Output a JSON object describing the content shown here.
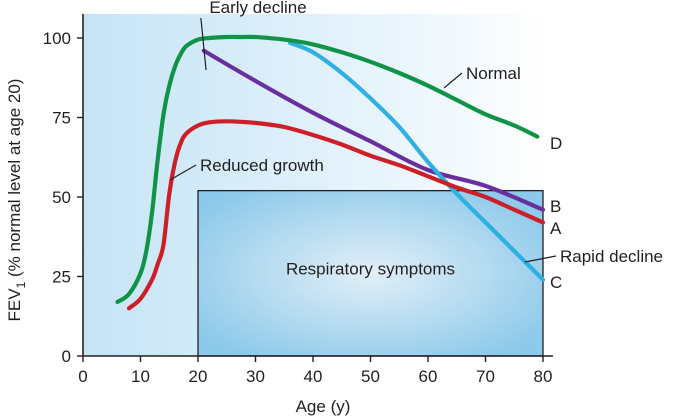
{
  "chart_data": {
    "type": "line",
    "title": "",
    "xlabel": "Age (y)",
    "ylabel_prefix": "FEV",
    "ylabel_sub": "1",
    "ylabel_suffix": " (% normal level at age 20)",
    "xlim": [
      0,
      80
    ],
    "ylim": [
      0,
      105
    ],
    "xticks": [
      0,
      10,
      20,
      30,
      40,
      50,
      60,
      70,
      80
    ],
    "yticks": [
      0,
      25,
      50,
      75,
      100
    ],
    "xtick_labels": [
      "0",
      "10",
      "20",
      "30",
      "40",
      "50",
      "60",
      "70",
      "80"
    ],
    "ytick_labels": [
      "0",
      "25",
      "50",
      "75",
      "100"
    ],
    "grid": false,
    "series": [
      {
        "name": "Normal",
        "label": "Normal",
        "end_label": "D",
        "color": "#0f9447",
        "x": [
          6,
          8,
          10,
          11,
          12,
          13,
          14,
          15,
          16,
          17,
          18,
          20,
          22,
          25,
          28,
          30,
          35,
          40,
          45,
          50,
          55,
          60,
          65,
          70,
          75,
          79
        ],
        "y": [
          17,
          19.5,
          26,
          33,
          45,
          62,
          76,
          85,
          91,
          95,
          97.5,
          99.5,
          100,
          100.3,
          100.3,
          100.3,
          99.5,
          98,
          95.5,
          92.5,
          89,
          85,
          80.5,
          76,
          72.5,
          69
        ]
      },
      {
        "name": "Early decline",
        "label": "Early decline",
        "end_label": "B",
        "color": "#6a2f9e",
        "x": [
          21,
          30,
          40,
          50,
          60,
          70,
          80
        ],
        "y": [
          96,
          86.5,
          76.5,
          67.5,
          58.5,
          53.5,
          46
        ]
      },
      {
        "name": "Rapid decline",
        "label": "Rapid decline",
        "end_label": "C",
        "color": "#2eb0e4",
        "x": [
          36,
          40,
          45,
          50,
          55,
          60,
          65,
          70,
          75,
          80
        ],
        "y": [
          98.5,
          95.5,
          89,
          81,
          72,
          61,
          51,
          42,
          33,
          24
        ]
      },
      {
        "name": "Reduced growth",
        "label": "Reduced growth",
        "end_label": "A",
        "color": "#cc1f27",
        "x": [
          8,
          10,
          12,
          13,
          14,
          15,
          16,
          17,
          18,
          20,
          22,
          25,
          30,
          35,
          40,
          45,
          50,
          55,
          60,
          65,
          70,
          75,
          80
        ],
        "y": [
          15,
          18,
          24,
          29,
          35,
          51,
          61,
          67,
          70,
          72.5,
          73.5,
          73.8,
          73.3,
          72,
          69.5,
          66.5,
          63,
          60,
          56.5,
          53,
          50,
          46,
          42
        ]
      }
    ],
    "region": {
      "label": "Respiratory symptoms",
      "x": [
        20,
        80
      ],
      "y": [
        0,
        52
      ]
    }
  },
  "colors": {
    "background_left": "#c5e4f6",
    "background_right": "#ffffff",
    "box_center": "#e2eff8",
    "box_edge": "#8cc9ea"
  }
}
